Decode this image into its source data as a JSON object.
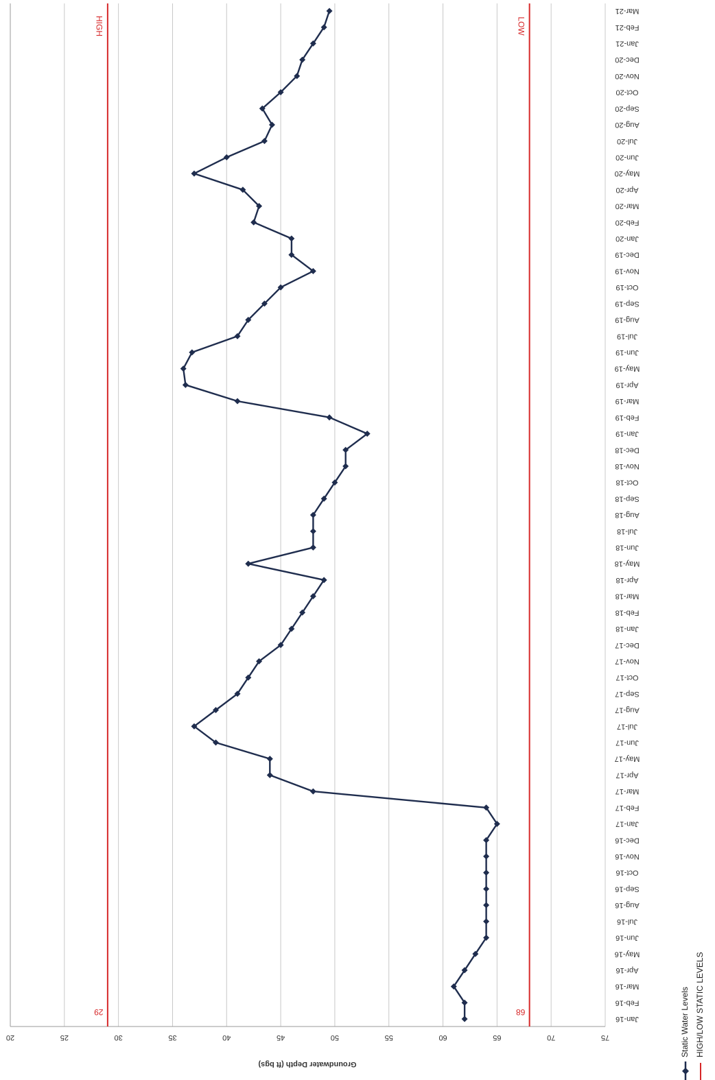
{
  "chart_data": {
    "type": "line",
    "title": "",
    "ylabel": "Groundwater Depth (ft bgs)",
    "xlabel": "",
    "ylim": [
      20,
      75
    ],
    "yticks": [
      20,
      25,
      30,
      35,
      40,
      45,
      50,
      55,
      60,
      65,
      70,
      75
    ],
    "grid": true,
    "orientation": "rotated-180",
    "legend_position": "bottom-right",
    "categories": [
      "Jan-16",
      "Feb-16",
      "Mar-16",
      "Apr-16",
      "May-16",
      "Jun-16",
      "Jul-16",
      "Aug-16",
      "Sep-16",
      "Oct-16",
      "Nov-16",
      "Dec-16",
      "Jan-17",
      "Feb-17",
      "Mar-17",
      "Apr-17",
      "May-17",
      "Jun-17",
      "Jul-17",
      "Aug-17",
      "Sep-17",
      "Oct-17",
      "Nov-17",
      "Dec-17",
      "Jan-18",
      "Feb-18",
      "Mar-18",
      "Apr-18",
      "May-18",
      "Jun-18",
      "Jul-18",
      "Aug-18",
      "Sep-18",
      "Oct-18",
      "Nov-18",
      "Dec-18",
      "Jan-19",
      "Feb-19",
      "Mar-19",
      "Apr-19",
      "May-19",
      "Jun-19",
      "Jul-19",
      "Aug-19",
      "Sep-19",
      "Oct-19",
      "Nov-19",
      "Dec-19",
      "Jan-20",
      "Feb-20",
      "Mar-20",
      "Apr-20",
      "May-20",
      "Jun-20",
      "Jul-20",
      "Aug-20",
      "Sep-20",
      "Oct-20",
      "Nov-20",
      "Dec-20",
      "Jan-21",
      "Feb-21",
      "Mar-21"
    ],
    "series": [
      {
        "name": "Static Water Levels",
        "color": "#1f2d4e",
        "marker": "diamond",
        "values": [
          62,
          62,
          61,
          62,
          63,
          64,
          64,
          64,
          64,
          64,
          64,
          64,
          65,
          64,
          48,
          44,
          44,
          39,
          37,
          39,
          41,
          42,
          43,
          45,
          46,
          47,
          48,
          49,
          42,
          48,
          48,
          48,
          49,
          50,
          51,
          51,
          53,
          49.5,
          41,
          36.2,
          36,
          36.8,
          41,
          42,
          43.5,
          45,
          48,
          46,
          46,
          42.5,
          43,
          41.5,
          37,
          40,
          43.5,
          44.2,
          43.3,
          45,
          46.5,
          47,
          48,
          49,
          49.5
        ]
      }
    ],
    "reference_lines": [
      {
        "name": "HIGH/LOW STATIC LEVELS",
        "label": "HIGH",
        "value": 29,
        "value_label": "29",
        "color": "#d62728"
      },
      {
        "name": "HIGH/LOW STATIC LEVELS",
        "label": "LOW",
        "value": 68,
        "value_label": "68",
        "color": "#d62728"
      }
    ],
    "legend": [
      {
        "label": "Static Water Levels",
        "color": "#1f2d4e",
        "marker": "diamond"
      },
      {
        "label": "HIGH/LOW STATIC LEVELS",
        "color": "#d62728",
        "marker": "line"
      }
    ]
  }
}
